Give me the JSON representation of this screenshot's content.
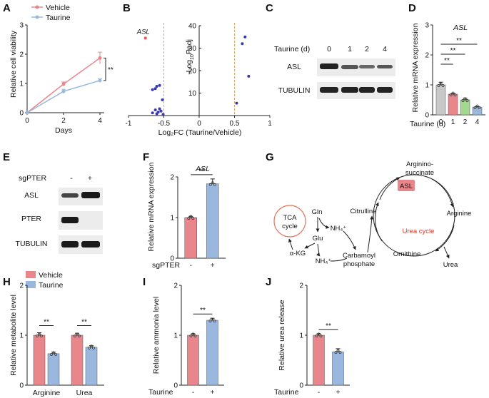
{
  "panels": {
    "A": {
      "label": "A",
      "legend": [
        "Vehicle",
        "Taurine"
      ],
      "ylabel": "Relative cell viability",
      "xlabel": "Days",
      "xticks": [
        "0",
        "2",
        "4"
      ],
      "yticks": [
        "0",
        "1",
        "2",
        "3"
      ],
      "sig": "**",
      "colors": {
        "Vehicle": "#e8868c",
        "Taurine": "#9ab8dd"
      }
    },
    "B": {
      "label": "B",
      "ylabel": "-Log10Padj",
      "ylabel_main": "-Log",
      "ylabel_sub": "10",
      "ylabel_rest": "Padj",
      "xlabel": "Log₂FC (Taurine/Vehicle)",
      "xticks": [
        "-1",
        "-0.5",
        "0",
        "0.5",
        "1"
      ],
      "yticks": [
        "0",
        "10",
        "20",
        "30",
        "40"
      ],
      "annotation": "ASL"
    },
    "C": {
      "label": "C",
      "header": "Taurine (d)",
      "lanes": [
        "0",
        "1",
        "2",
        "4"
      ],
      "rows": [
        "ASL",
        "TUBULIN"
      ]
    },
    "D": {
      "label": "D",
      "title": "ASL",
      "ylabel": "Relative mRNA expression",
      "yticks": [
        "0",
        "1",
        "2",
        "3"
      ],
      "xlabel": "Taurine (d)",
      "categories": [
        "0",
        "1",
        "2",
        "4"
      ],
      "sig": [
        "**",
        "**",
        "**"
      ],
      "colors": [
        "#c8c8c8",
        "#e8868c",
        "#a3d88e",
        "#9ab8dd"
      ]
    },
    "E": {
      "label": "E",
      "header": "sgPTER",
      "lanes": [
        "-",
        "+"
      ],
      "rows": [
        "ASL",
        "PTER",
        "TUBULIN"
      ]
    },
    "F": {
      "label": "F",
      "title": "ASL",
      "ylabel": "Relative mRNA expression",
      "yticks": [
        "0",
        "1",
        "2"
      ],
      "xlabel": "sgPTER",
      "categories": [
        "-",
        "+"
      ],
      "sig": "**"
    },
    "G": {
      "label": "G",
      "nodes": {
        "argininosuccinate_1": "Arginino-",
        "argininosuccinate_2": "succinate",
        "asl": "ASL",
        "arginine": "Arginine",
        "citrulline": "Citrulline",
        "urea_cycle": "Urea cycle",
        "ornithine": "Ornithine",
        "urea": "Urea",
        "tca_1": "TCA",
        "tca_2": "cycle",
        "gln": "Gln",
        "nh4_1": "NH₄⁺",
        "glu": "Glu",
        "akg": "α-KG",
        "nh4_2": "NH₄⁺",
        "carbamoyl_1": "Carbamoyl",
        "carbamoyl_2": "phosphate"
      }
    },
    "H": {
      "label": "H",
      "legend": [
        "Vehicle",
        "Taurine"
      ],
      "ylabel": "Relative metabolite level",
      "yticks": [
        "0",
        "1",
        "2"
      ],
      "categories": [
        "Arginine",
        "Urea"
      ],
      "sig": [
        "**",
        "**"
      ]
    },
    "I": {
      "label": "I",
      "ylabel": "Relative ammonia level",
      "yticks": [
        "0",
        "1",
        "2"
      ],
      "xlabel": "Taurine",
      "categories": [
        "-",
        "+"
      ],
      "sig": "**"
    },
    "J": {
      "label": "J",
      "ylabel": "Relative urea release",
      "yticks": [
        "0",
        "1",
        "2"
      ],
      "xlabel": "Taurine",
      "categories": [
        "-",
        "+"
      ],
      "sig": "**"
    }
  },
  "chart_data": [
    {
      "panel": "A",
      "type": "line",
      "x": [
        0,
        2,
        4
      ],
      "series": [
        {
          "name": "Vehicle",
          "values": [
            0.0,
            0.98,
            1.87
          ],
          "error": [
            0,
            0.07,
            0.2
          ]
        },
        {
          "name": "Taurine",
          "values": [
            0.0,
            0.73,
            1.1
          ],
          "error": [
            0,
            0.07,
            0.06
          ]
        }
      ],
      "xlabel": "Days",
      "ylabel": "Relative cell viability",
      "ylim": [
        0,
        3
      ]
    },
    {
      "panel": "B",
      "type": "scatter",
      "xlim": [
        -1,
        1
      ],
      "ylim": [
        0,
        40
      ],
      "points": [
        {
          "x": -0.76,
          "y": 34.5,
          "highlight": true
        },
        {
          "x": -0.6,
          "y": 13.0
        },
        {
          "x": -0.56,
          "y": 13.4
        },
        {
          "x": -0.62,
          "y": 12.0
        },
        {
          "x": -0.66,
          "y": 11.5
        },
        {
          "x": -0.52,
          "y": 7.0
        },
        {
          "x": -0.56,
          "y": 3.0
        },
        {
          "x": -0.54,
          "y": 2.0
        },
        {
          "x": -0.58,
          "y": 1.5
        },
        {
          "x": -0.62,
          "y": 2.5
        },
        {
          "x": -0.66,
          "y": 1.2
        },
        {
          "x": -0.51,
          "y": 0.5
        },
        {
          "x": -0.6,
          "y": 0.8
        },
        {
          "x": 0.53,
          "y": 5.5
        },
        {
          "x": 0.61,
          "y": 32.0
        },
        {
          "x": 0.65,
          "y": 35.0
        },
        {
          "x": 0.7,
          "y": 17.5
        }
      ],
      "thresholds_x": [
        -0.5,
        0.5
      ],
      "xlabel": "Log₂FC (Taurine/Vehicle)",
      "ylabel": "-Log10Padj"
    },
    {
      "panel": "D",
      "type": "bar",
      "categories": [
        "0",
        "1",
        "2",
        "4"
      ],
      "values": [
        1.0,
        0.69,
        0.5,
        0.26
      ],
      "errors": [
        0.09,
        0.03,
        0.06,
        0.02
      ],
      "ylim": [
        0,
        3
      ],
      "xlabel": "Taurine (d)",
      "ylabel": "Relative mRNA expression"
    },
    {
      "panel": "F",
      "type": "bar",
      "categories": [
        "-",
        "+"
      ],
      "values": [
        1.0,
        1.83
      ],
      "errors": [
        0.03,
        0.12
      ],
      "ylim": [
        0,
        2
      ],
      "xlabel": "sgPTER",
      "ylabel": "Relative mRNA expression"
    },
    {
      "panel": "H",
      "type": "bar",
      "categories": [
        "Arginine",
        "Urea"
      ],
      "series": [
        {
          "name": "Vehicle",
          "values": [
            1.0,
            1.0
          ],
          "errors": [
            0.05,
            0.04
          ]
        },
        {
          "name": "Taurine",
          "values": [
            0.63,
            0.76
          ],
          "errors": [
            0.03,
            0.03
          ]
        }
      ],
      "ylim": [
        0,
        2
      ],
      "ylabel": "Relative metabolite level"
    },
    {
      "panel": "I",
      "type": "bar",
      "categories": [
        "-",
        "+"
      ],
      "values": [
        1.0,
        1.3
      ],
      "errors": [
        0.03,
        0.04
      ],
      "ylim": [
        0,
        2
      ],
      "xlabel": "Taurine",
      "ylabel": "Relative ammonia level"
    },
    {
      "panel": "J",
      "type": "bar",
      "categories": [
        "-",
        "+"
      ],
      "values": [
        1.0,
        0.67
      ],
      "errors": [
        0.03,
        0.06
      ],
      "ylim": [
        0,
        2
      ],
      "xlabel": "Taurine",
      "ylabel": "Relative urea release"
    }
  ]
}
